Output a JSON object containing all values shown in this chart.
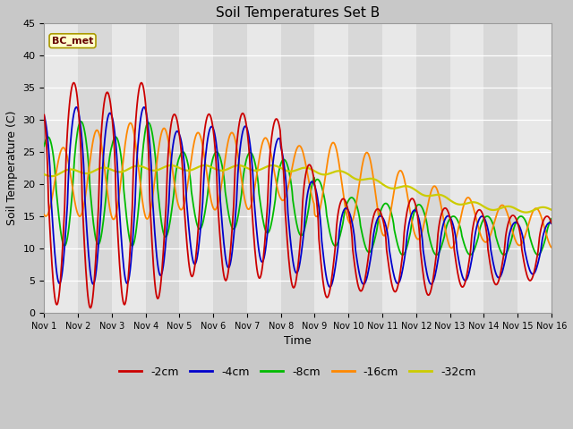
{
  "title": "Soil Temperatures Set B",
  "xlabel": "Time",
  "ylabel": "Soil Temperature (C)",
  "ylim": [
    0,
    45
  ],
  "annotation": "BC_met",
  "legend_labels": [
    "-2cm",
    "-4cm",
    "-8cm",
    "-16cm",
    "-32cm"
  ],
  "legend_colors": [
    "#cc0000",
    "#0000cc",
    "#00bb00",
    "#ff8800",
    "#cccc00"
  ],
  "x_ticks": [
    "Nov 1",
    "Nov 2",
    "Nov 3",
    "Nov 4",
    "Nov 5",
    "Nov 6",
    "Nov 7",
    "Nov 8",
    "Nov 9",
    "Nov 10",
    "Nov 11",
    "Nov 12",
    "Nov 13",
    "Nov 14",
    "Nov 15",
    "Nov 16"
  ],
  "n_points": 721,
  "fig_facecolor": "#c8c8c8",
  "ax_facecolor": "#e0e0e0",
  "band_light": "#e8e8e8",
  "band_dark": "#d8d8d8"
}
